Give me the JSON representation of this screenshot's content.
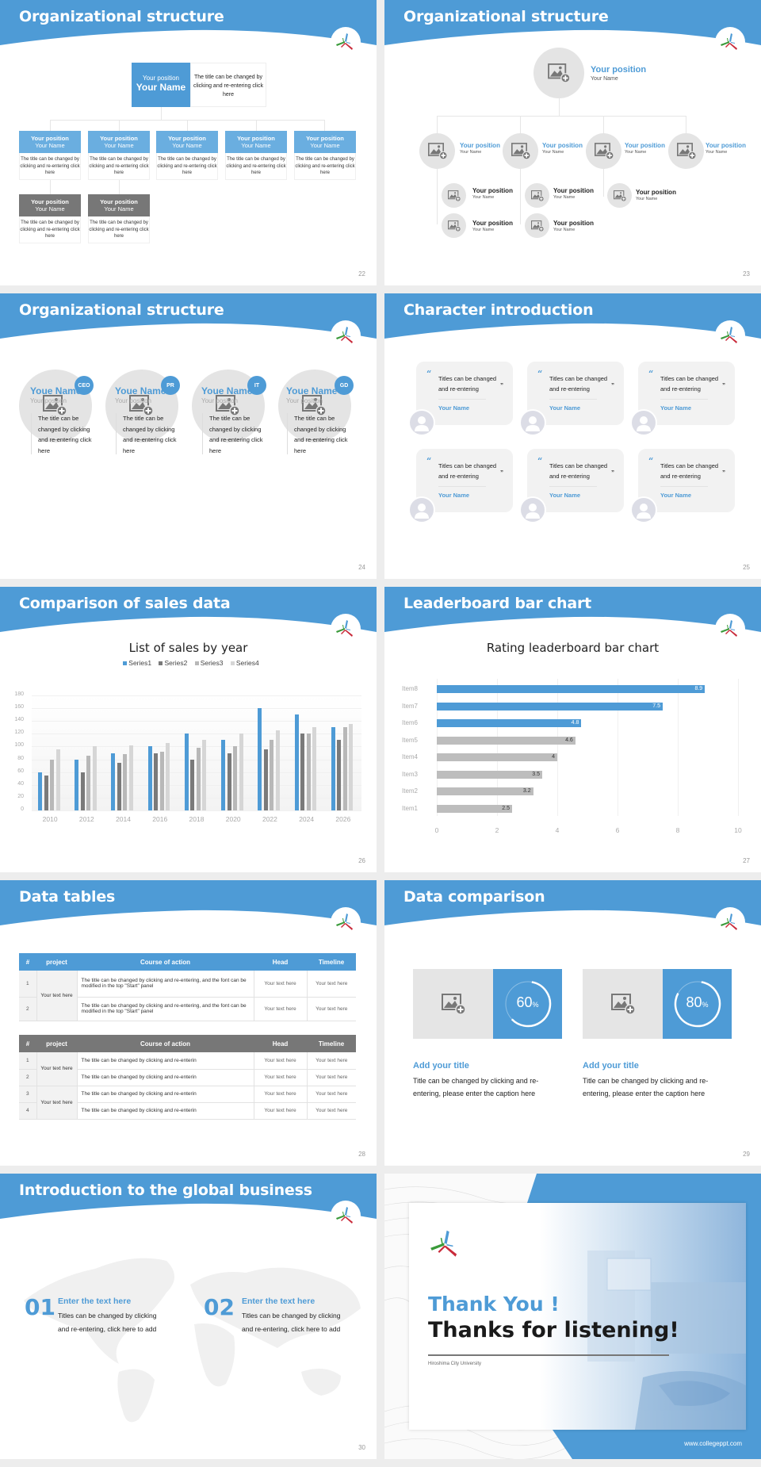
{
  "theme": {
    "accent": "#4e9bd6",
    "accent_light": "#6aaee0",
    "grey_header": "#777777",
    "placeholder_grey": "#e4e4e4"
  },
  "slides": {
    "s22": {
      "title": "Organizational structure",
      "page": "22",
      "top": {
        "position": "Your position",
        "name": "Your Name",
        "desc": "The title can be changed by clicking and re-entering click here"
      },
      "cards": [
        {
          "position": "Your position",
          "name": "Your Name",
          "desc": "The title can be changed by clicking and re-entering click here"
        },
        {
          "position": "Your position",
          "name": "Your Name",
          "desc": "The title can be changed by clicking and re-entering click here"
        },
        {
          "position": "Your position",
          "name": "Your Name",
          "desc": "The title can be changed by clicking and re-entering click here"
        },
        {
          "position": "Your position",
          "name": "Your Name",
          "desc": "The title can be changed by clicking and re-entering click here"
        },
        {
          "position": "Your position",
          "name": "Your Name",
          "desc": "The title can be changed by clicking and re-entering click here"
        }
      ],
      "sub_cards": [
        {
          "position": "Your position",
          "name": "Your Name",
          "desc": "The title can be changed by clicking and re-entering click here"
        },
        {
          "position": "Your position",
          "name": "Your Name",
          "desc": "The title can be changed by clicking and re-entering click here"
        }
      ]
    },
    "s23": {
      "title": "Organizational structure",
      "page": "23",
      "top": {
        "position": "Your position",
        "name": "Your Name"
      },
      "level2": [
        {
          "position": "Your position",
          "name": "Your Name"
        },
        {
          "position": "Your position",
          "name": "Your Name"
        },
        {
          "position": "Your position",
          "name": "Your Name"
        },
        {
          "position": "Your position",
          "name": "Your Name"
        }
      ],
      "level3": [
        {
          "position": "Your position",
          "name": "Your Name"
        },
        {
          "position": "Your position",
          "name": "Your Name"
        },
        {
          "position": "Your position",
          "name": "Your Name"
        },
        {
          "position": "Your position",
          "name": "Your Name"
        },
        {
          "position": "Your position",
          "name": "Your Name"
        }
      ]
    },
    "s24": {
      "title": "Organizational structure",
      "page": "24",
      "people": [
        {
          "tag": "CEO",
          "name": "Youe Name",
          "position": "Your position",
          "desc": "The title can be changed by clicking and re-entering click here"
        },
        {
          "tag": "PR",
          "name": "Youe Name",
          "position": "Your position",
          "desc": "The title can be changed by clicking and re-entering click here"
        },
        {
          "tag": "IT",
          "name": "Youe Name",
          "position": "Your position",
          "desc": "The title can be changed by clicking and re-entering click here"
        },
        {
          "tag": "GD",
          "name": "Youe Name",
          "position": "Your position",
          "desc": "The title can be changed by clicking and re-entering click here"
        }
      ]
    },
    "s25": {
      "title": "Character introduction",
      "page": "25",
      "quotes": [
        {
          "text": "Titles can be changed and re-entering",
          "name": "Your Name"
        },
        {
          "text": "Titles can be changed and re-entering",
          "name": "Your Name"
        },
        {
          "text": "Titles can be changed and re-entering",
          "name": "Your Name"
        },
        {
          "text": "Titles can be changed and re-entering",
          "name": "Your Name"
        },
        {
          "text": "Titles can be changed and re-entering",
          "name": "Your Name"
        },
        {
          "text": "Titles can be changed and re-entering",
          "name": "Your Name"
        }
      ],
      "open_quote": "“",
      "close_quote": "”"
    },
    "s26": {
      "title": "Comparison of sales data",
      "page": "26"
    },
    "s27": {
      "title": "Leaderboard bar chart",
      "page": "27"
    },
    "s28": {
      "title": "Data tables",
      "page": "28",
      "headers": [
        "#",
        "project",
        "Course of action",
        "Head",
        "Timeline"
      ],
      "table1": {
        "rows": [
          {
            "idx": "1",
            "action": "The title can be changed by clicking and re-entering, and the font can be modified in the top \"Start\" panel",
            "head": "Your text here",
            "timeline": "Your text here"
          },
          {
            "idx": "2",
            "action": "The title can be changed by clicking and re-entering, and the font can be modified in the top \"Start\" panel",
            "head": "Your text here",
            "timeline": "Your text here"
          }
        ],
        "project": "Your text here"
      },
      "table2": {
        "rows": [
          {
            "idx": "1",
            "action": "The title can be changed by clicking and re-enterin",
            "head": "Your text here",
            "timeline": "Your text here"
          },
          {
            "idx": "2",
            "action": "The title can be changed by clicking and re-enterin",
            "head": "Your text here",
            "timeline": "Your text here"
          },
          {
            "idx": "3",
            "action": "The title can be changed by clicking and re-enterin",
            "head": "Your text here",
            "timeline": "Your text here"
          },
          {
            "idx": "4",
            "action": "The title can be changed by clicking and re-enterin",
            "head": "Your text here",
            "timeline": "Your text here"
          }
        ],
        "project_a": "Your text here",
        "project_b": "Your text here"
      }
    },
    "s29": {
      "title": "Data comparison",
      "page": "29",
      "items": [
        {
          "pct": "60",
          "unit": "%",
          "title": "Add your title",
          "desc": "Title can be changed by clicking and re-entering, please enter the caption here"
        },
        {
          "pct": "80",
          "unit": "%",
          "title": "Add your title",
          "desc": "Title can be changed by clicking and re-entering, please enter the caption here"
        }
      ]
    },
    "s30": {
      "title": "Introduction to the global business",
      "page": "30",
      "items": [
        {
          "num": "01",
          "title": "Enter the text here",
          "desc": "Titles can be changed by clicking and re-entering, click here to add"
        },
        {
          "num": "02",
          "title": "Enter the text here",
          "desc": "Titles can be changed by clicking and re-entering, click here to add"
        }
      ]
    },
    "s31": {
      "line1": "Thank You !",
      "line2": "Thanks for listening!",
      "university": "Hiroshima City University",
      "url": "www.collegeppt.com"
    }
  },
  "chart_data": [
    {
      "type": "bar",
      "title": "List of sales by year",
      "categories": [
        "2010",
        "2012",
        "2014",
        "2016",
        "2018",
        "2020",
        "2022",
        "2024",
        "2026"
      ],
      "series": [
        {
          "name": "Series1",
          "color": "#4e9bd6",
          "values": [
            60,
            80,
            90,
            100,
            120,
            110,
            160,
            150,
            130
          ]
        },
        {
          "name": "Series2",
          "color": "#7a7a7a",
          "values": [
            55,
            60,
            75,
            90,
            80,
            90,
            96,
            120,
            110
          ]
        },
        {
          "name": "Series3",
          "color": "#b8b8b8",
          "values": [
            80,
            86,
            88,
            92,
            98,
            100,
            110,
            120,
            130
          ]
        },
        {
          "name": "Series4",
          "color": "#d6d6d6",
          "values": [
            95,
            100,
            102,
            105,
            110,
            120,
            126,
            130,
            135
          ]
        }
      ],
      "yticks": [
        "0",
        "20",
        "40",
        "60",
        "80",
        "100",
        "120",
        "140",
        "160",
        "180"
      ],
      "ylim": [
        0,
        180
      ],
      "xlabel": "",
      "ylabel": "",
      "legend_position": "top",
      "grid": true
    },
    {
      "type": "bar",
      "orientation": "horizontal",
      "title": "Rating leaderboard bar chart",
      "categories": [
        "Item8",
        "Item7",
        "Item6",
        "Item5",
        "Item4",
        "Item3",
        "Item2",
        "Item1"
      ],
      "values": [
        8.9,
        7.5,
        4.8,
        4.6,
        4,
        3.5,
        3.2,
        2.5
      ],
      "labels": [
        "8.9",
        "7.5",
        "4.8",
        "4.6",
        "4",
        "3.5",
        "3.2",
        "2.5"
      ],
      "highlight_top": 3,
      "colors": {
        "highlight": "#4e9bd6",
        "normal": "#bdbdbd"
      },
      "xticks": [
        "0",
        "2",
        "4",
        "6",
        "8",
        "10"
      ],
      "xlim": [
        0,
        10
      ],
      "grid": true
    }
  ]
}
